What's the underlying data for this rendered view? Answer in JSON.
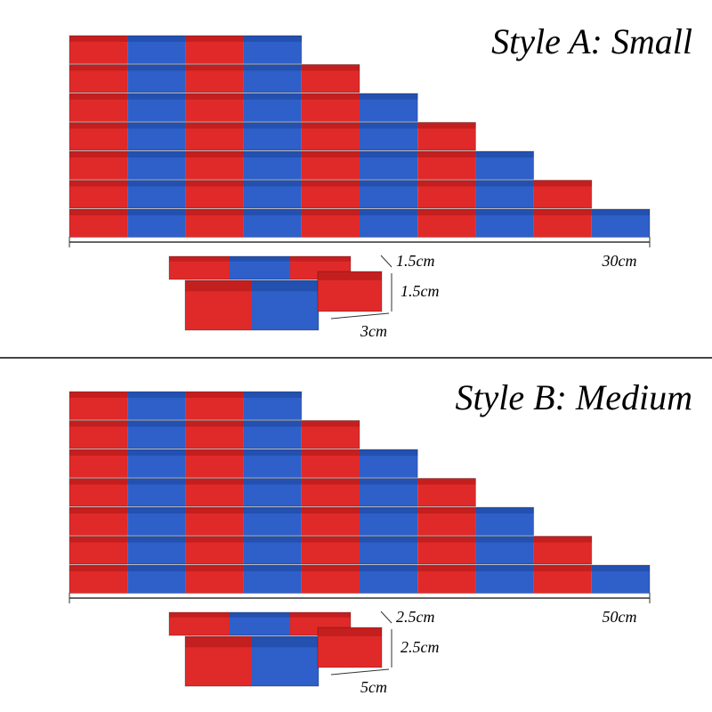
{
  "sections": [
    {
      "title": "Style A: Small",
      "length_label": "30cm",
      "depth_label": "1.5cm",
      "height_label": "1.5cm",
      "unit_label": "3cm"
    },
    {
      "title": "Style B: Medium",
      "length_label": "50cm",
      "depth_label": "2.5cm",
      "height_label": "2.5cm",
      "unit_label": "5cm"
    }
  ]
}
